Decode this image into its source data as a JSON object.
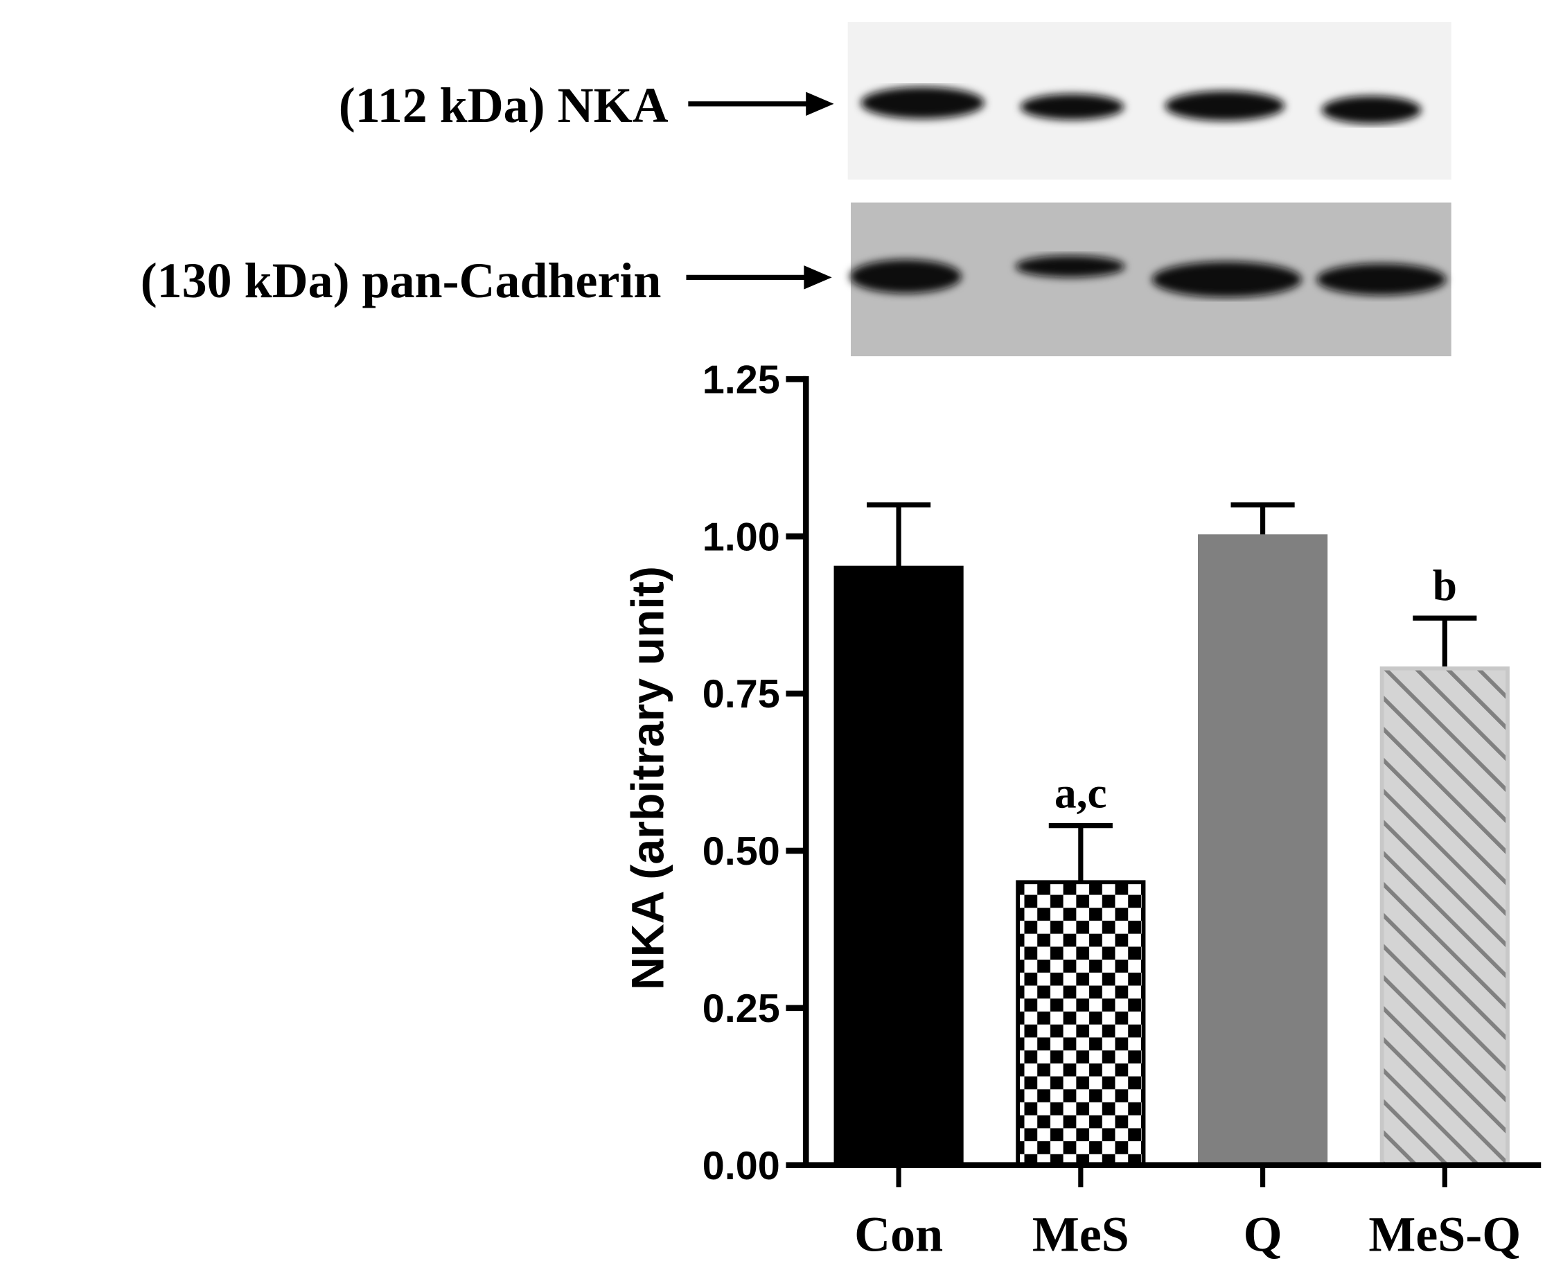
{
  "blot": {
    "labels": [
      "(112 kDa) NKA",
      "(130 kDa) pan-Cadherin"
    ]
  },
  "chart_data": {
    "type": "bar",
    "y_label": "NKA (arbitrary unit)",
    "categories": [
      "Con",
      "MeS",
      "Q",
      "MeS-Q"
    ],
    "values": [
      0.95,
      0.45,
      1.0,
      0.79
    ],
    "errors": [
      0.1,
      0.09,
      0.05,
      0.08
    ],
    "annotations": [
      null,
      "a,c",
      null,
      "b"
    ],
    "colors": [
      "#000000",
      "#000000",
      "#808080",
      "#c8c8c8"
    ],
    "patterns": [
      "solid",
      "checkerboard",
      "solid",
      "diagonal-stripes"
    ],
    "ylim": [
      0,
      1.25
    ],
    "yticks": [
      {
        "value": 0,
        "label": "0.00"
      },
      0.25,
      {
        "value": 0.5,
        "label": "0.50"
      },
      0.75,
      {
        "value": 1,
        "label": "1.00"
      },
      1.25
    ]
  }
}
